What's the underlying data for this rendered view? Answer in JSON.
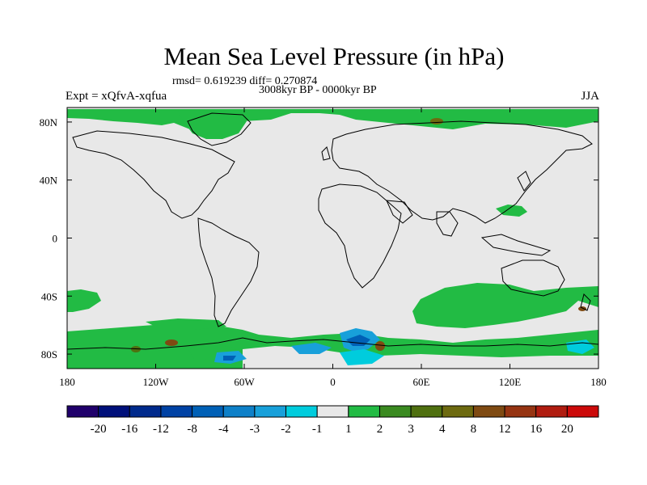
{
  "title": "Mean Sea Level Pressure (in hPa)",
  "stats_line": "rmsd= 0.619239 diff= 0.270874",
  "period": "3008kyr BP - 0000kyr BP",
  "experiment": "Expt = xQfvA-xqfua",
  "season": "JJA",
  "map": {
    "projection": "cylindrical equidistant",
    "lon_range": [
      -180,
      180
    ],
    "lat_range": [
      -90,
      90
    ],
    "background_color": "#e8e8e8",
    "coastline_color": "#000000",
    "x_ticks": [
      {
        "lon": -180,
        "label": "180"
      },
      {
        "lon": -120,
        "label": "120W"
      },
      {
        "lon": -60,
        "label": "60W"
      },
      {
        "lon": 0,
        "label": "0"
      },
      {
        "lon": 60,
        "label": "60E"
      },
      {
        "lon": 120,
        "label": "120E"
      },
      {
        "lon": 180,
        "label": "180"
      }
    ],
    "y_ticks": [
      {
        "lat": 80,
        "label": "80N"
      },
      {
        "lat": 40,
        "label": "40N"
      },
      {
        "lat": 0,
        "label": "0"
      },
      {
        "lat": -40,
        "label": "40S"
      },
      {
        "lat": -80,
        "label": "80S"
      }
    ]
  },
  "colorbar": {
    "colors": [
      "#20006b",
      "#00107a",
      "#002a8c",
      "#0042a4",
      "#0060b6",
      "#0e80c8",
      "#18a0da",
      "#00ccdd",
      "#e8e8e8",
      "#22bb44",
      "#3a8a20",
      "#4f7010",
      "#6d6a10",
      "#7f4a12",
      "#963412",
      "#b01c10",
      "#cc0a0a"
    ],
    "labels": [
      "-20",
      "-16",
      "-12",
      "-8",
      "-4",
      "-3",
      "-2",
      "-1",
      "1",
      "2",
      "3",
      "4",
      "8",
      "12",
      "16",
      "20"
    ]
  }
}
